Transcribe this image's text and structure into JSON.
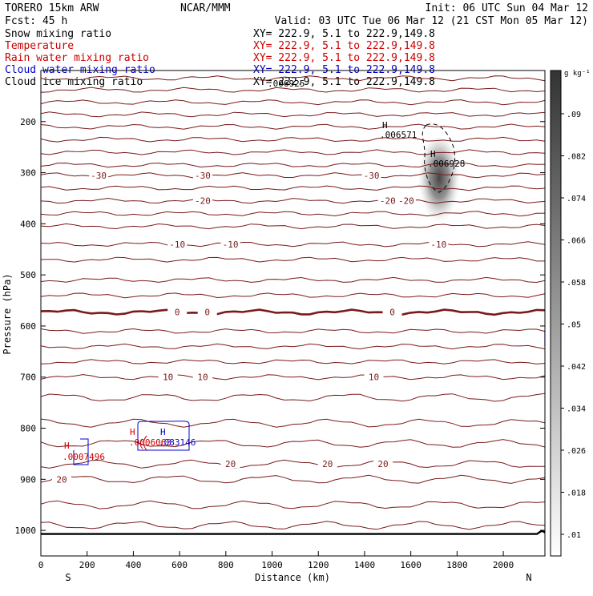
{
  "header": {
    "model": "TORERO  15km ARW",
    "center": "NCAR/MMM",
    "init": "Init: 06 UTC Sun 04 Mar 12",
    "fcst": "Fcst:    45 h",
    "valid": "Valid: 03 UTC Tue 06 Mar 12 (21 CST Mon 05 Mar 12)"
  },
  "legend": [
    {
      "label": "Snow mixing ratio",
      "xy": "XY= 222.9,  5.1 to 222.9,149.8",
      "color": "#000000"
    },
    {
      "label": "Temperature",
      "xy": "XY= 222.9,  5.1 to 222.9,149.8",
      "color": "#cc0000"
    },
    {
      "label": "Rain water mixing ratio",
      "xy": "XY= 222.9,  5.1 to 222.9,149.8",
      "color": "#cc0000"
    },
    {
      "label": "Cloud water mixing ratio",
      "xy": "XY= 222.9,  5.1 to 222.9,149.8",
      "color": "#0000cc"
    },
    {
      "label": "Cloud ice mixing ratio",
      "xy": "XY= 222.9,  5.1 to 222.9,149.8",
      "color": "#000000"
    }
  ],
  "colors": {
    "isotherm": "#7a1a1a",
    "freezing": "#7a1a1a",
    "rain": "#cc0000",
    "cloud_water": "#0000cc",
    "snow_max": "#222222"
  },
  "chart_data": {
    "type": "cross-section",
    "xlabel": "Distance (km)",
    "ylabel": "Pressure (hPa)",
    "xlim": [
      0,
      2180
    ],
    "ylim": [
      1050,
      100
    ],
    "x_ticks": [
      0,
      200,
      400,
      600,
      800,
      1000,
      1200,
      1400,
      1600,
      1800,
      2000
    ],
    "y_ticks": [
      200,
      300,
      400,
      500,
      600,
      700,
      800,
      900,
      1000
    ],
    "left_end": "S",
    "right_end": "N",
    "colorbar": {
      "units": "g kg⁻¹",
      "ticks": [
        ".01",
        ".018",
        ".026",
        ".034",
        ".042",
        ".05",
        ".058",
        ".066",
        ".074",
        ".082",
        ".09"
      ]
    },
    "isotherms": [
      {
        "p": 115
      },
      {
        "p": 138
      },
      {
        "p": 162
      },
      {
        "p": 186
      },
      {
        "p": 210
      },
      {
        "p": 235,
        "labels": []
      },
      {
        "p": 260
      },
      {
        "p": 285
      },
      {
        "p": 305,
        "label": "-30",
        "label_x": [
          250,
          700,
          1430
        ]
      },
      {
        "p": 330
      },
      {
        "p": 355,
        "label": "-20",
        "label_x": [
          700,
          1500,
          1580
        ]
      },
      {
        "p": 380
      },
      {
        "p": 405
      },
      {
        "p": 440,
        "label": "-10",
        "label_x": [
          590,
          820,
          1720
        ]
      },
      {
        "p": 470
      },
      {
        "p": 510
      },
      {
        "p": 540
      },
      {
        "p": 573,
        "label": "0",
        "label_x": [
          590,
          720,
          1520
        ],
        "freezing": true
      },
      {
        "p": 610
      },
      {
        "p": 640
      },
      {
        "p": 670
      },
      {
        "p": 700,
        "label": "10",
        "label_x": [
          550,
          700,
          1440
        ]
      },
      {
        "p": 740
      },
      {
        "p": 790
      },
      {
        "p": 830
      },
      {
        "p": 870,
        "label": "20",
        "label_x": [
          820,
          1240,
          1480
        ]
      },
      {
        "p": 900,
        "label": "20",
        "label_x": [
          90
        ]
      },
      {
        "p": 950
      },
      {
        "p": 990
      }
    ],
    "ground_pressure": 1007,
    "snow_max": {
      "label": "H",
      "value": ".006928",
      "x": 1730,
      "p": 300
    },
    "snow_max2": {
      "label": "H",
      "value": ".006571",
      "x": 1520,
      "p": 228
    },
    "cloud_ice_label": ".006925",
    "rain_max": {
      "label": "H",
      "value": ".0007496",
      "x": 130,
      "p": 840
    },
    "rain_max2": {
      "label": "H",
      "value": ".0006063",
      "x": 400,
      "p": 820
    },
    "cloud_water_max": {
      "label": "H",
      "value": ".083146",
      "x": 520,
      "p": 820
    }
  }
}
